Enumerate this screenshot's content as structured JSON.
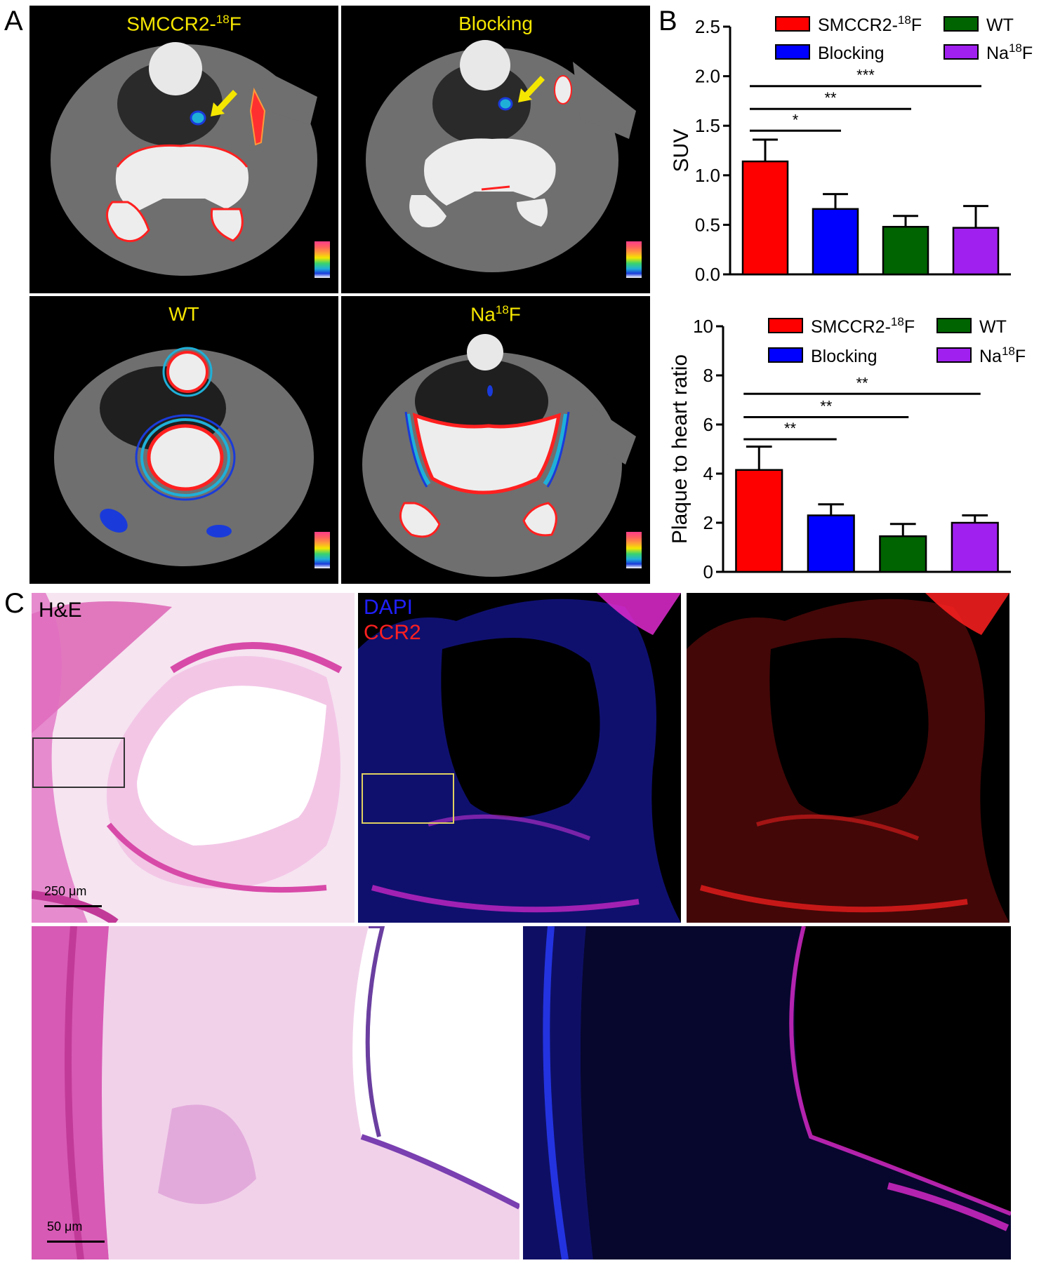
{
  "panel_letters": {
    "a": "A",
    "b": "B",
    "c": "C"
  },
  "ct_panels": [
    {
      "title": "SMCCR2-",
      "sup": "18",
      "suffix": "F"
    },
    {
      "title": "Blocking",
      "sup": "",
      "suffix": ""
    },
    {
      "title": "WT",
      "sup": "",
      "suffix": ""
    },
    {
      "title": "Na",
      "sup": "18",
      "suffix": "F"
    }
  ],
  "legend": {
    "smccr2": {
      "text": "SMCCR2-",
      "sup": "18",
      "suffix": "F",
      "color": "#ff0000"
    },
    "blocking": {
      "text": "Blocking",
      "color": "#0000ff"
    },
    "wt": {
      "text": "WT",
      "color": "#006400"
    },
    "naf": {
      "text": "Na",
      "sup": "18",
      "suffix": "F",
      "color": "#a020f0"
    }
  },
  "histology": {
    "he_label": "H&E",
    "dapi_label": "DAPI",
    "ccr2_label": "CCR2",
    "scale_top": "250 μm",
    "scale_bottom": "50 μm",
    "colors": {
      "he": "#e070c0",
      "dapi": "#2020ff",
      "ccr2": "#ff2020"
    }
  },
  "chart_data": [
    {
      "type": "bar",
      "ylabel": "SUV",
      "ylim": [
        0,
        2.5
      ],
      "yticks": [
        0.0,
        0.5,
        1.0,
        1.5,
        2.0,
        2.5
      ],
      "ytick_labels": [
        "0.0",
        "0.5",
        "1.0",
        "1.5",
        "2.0",
        "2.5"
      ],
      "categories": [
        "SMCCR2-18F",
        "Blocking",
        "WT",
        "Na18F"
      ],
      "values": [
        1.14,
        0.66,
        0.48,
        0.47
      ],
      "errors": [
        0.22,
        0.15,
        0.11,
        0.22
      ],
      "colors": [
        "#ff0000",
        "#0000ff",
        "#006400",
        "#a020f0"
      ],
      "significance": [
        {
          "from": 0,
          "to": 1,
          "level": 1.45,
          "label": "*"
        },
        {
          "from": 0,
          "to": 2,
          "level": 1.67,
          "label": "**"
        },
        {
          "from": 0,
          "to": 3,
          "level": 1.9,
          "label": "***"
        }
      ],
      "legend": "top"
    },
    {
      "type": "bar",
      "ylabel": "Plaque to heart ratio",
      "ylim": [
        0,
        10
      ],
      "yticks": [
        0,
        2,
        4,
        6,
        8,
        10
      ],
      "ytick_labels": [
        "0",
        "2",
        "4",
        "6",
        "8",
        "10"
      ],
      "categories": [
        "SMCCR2-18F",
        "Blocking",
        "WT",
        "Na18F"
      ],
      "values": [
        4.15,
        2.3,
        1.45,
        2.0
      ],
      "errors": [
        0.95,
        0.45,
        0.5,
        0.3
      ],
      "colors": [
        "#ff0000",
        "#0000ff",
        "#006400",
        "#a020f0"
      ],
      "significance": [
        {
          "from": 0,
          "to": 1,
          "level": 5.4,
          "label": "**"
        },
        {
          "from": 0,
          "to": 2,
          "level": 6.3,
          "label": "**"
        },
        {
          "from": 0,
          "to": 3,
          "level": 7.25,
          "label": "**"
        }
      ],
      "legend": "top"
    }
  ]
}
